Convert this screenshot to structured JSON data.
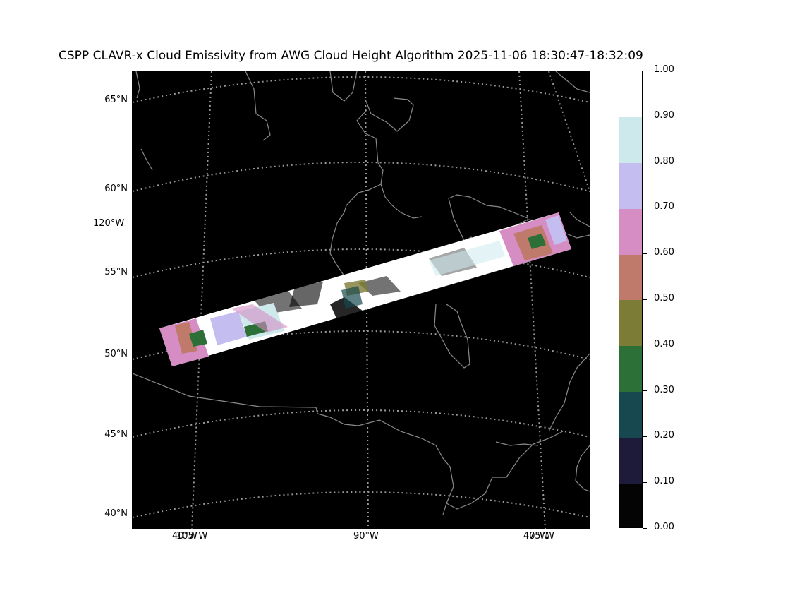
{
  "title": "CSPP CLAVR-x Cloud Emissivity from AWG Cloud Height Algorithm 2025-11-06 18:30:47-18:32:09",
  "map": {
    "projection": "lambert-conformal",
    "background": "#000000",
    "coastline_color": "#8a8a8a",
    "graticule_color": "#9a9a9a",
    "lat_labels": [
      "65°N",
      "60°N",
      "55°N",
      "50°N",
      "45°N",
      "40°N"
    ],
    "lon_labels_left": [
      "120°W"
    ],
    "lon_labels_bottom": [
      "105°W",
      "90°W",
      "75°W"
    ],
    "lon_labels_bottom_overlap": [
      "40°W",
      "40°W"
    ]
  },
  "colorbar": {
    "colors": [
      "#040404",
      "#1e1a3a",
      "#17484f",
      "#2c7038",
      "#7c7c36",
      "#bf7a6c",
      "#d58dc4",
      "#c4bdf0",
      "#cde9ec",
      "#ffffff"
    ],
    "tick_labels": [
      "0.00",
      "0.10",
      "0.20",
      "0.30",
      "0.40",
      "0.50",
      "0.60",
      "0.70",
      "0.80",
      "0.90",
      "1.00"
    ]
  }
}
